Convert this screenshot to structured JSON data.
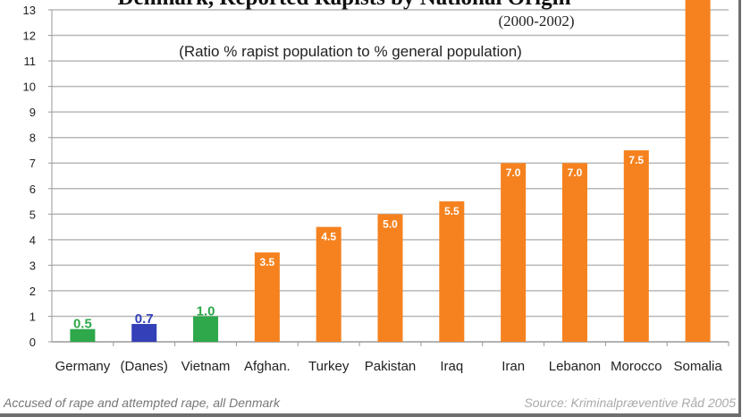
{
  "chart_data": {
    "type": "bar",
    "title": "Denmark, Reported Rapists by National Origin",
    "subtitle": "(2000-2002)",
    "annotation": "(Ratio % rapist population to % general population)",
    "categories": [
      "Germany",
      "(Danes)",
      "Vietnam",
      "Afghan.",
      "Turkey",
      "Pakistan",
      "Iraq",
      "Iran",
      "Lebanon",
      "Morocco",
      "Somalia"
    ],
    "values": [
      0.5,
      0.7,
      1.0,
      3.5,
      4.5,
      5.0,
      5.5,
      7.0,
      7.0,
      7.5,
      13.5
    ],
    "value_labels": [
      "0.5",
      "0.7",
      "1.0",
      "3.5",
      "4.5",
      "5.0",
      "5.5",
      "7.0",
      "7.0",
      "7.5",
      ""
    ],
    "bar_colors": [
      "#2ea84a",
      "#3340b8",
      "#2ea84a",
      "#f5821f",
      "#f5821f",
      "#f5821f",
      "#f5821f",
      "#f5821f",
      "#f5821f",
      "#f5821f",
      "#f5821f"
    ],
    "ylim": [
      0,
      13
    ],
    "yticks": [
      "0",
      "1",
      "2",
      "3",
      "4",
      "5",
      "6",
      "7",
      "8",
      "9",
      "10",
      "11",
      "12",
      "13"
    ],
    "grid": true,
    "footer_left": "Accused of rape and attempted rape, all Denmark",
    "footer_right": "Source: Kriminalpræventive Råd 2005"
  }
}
